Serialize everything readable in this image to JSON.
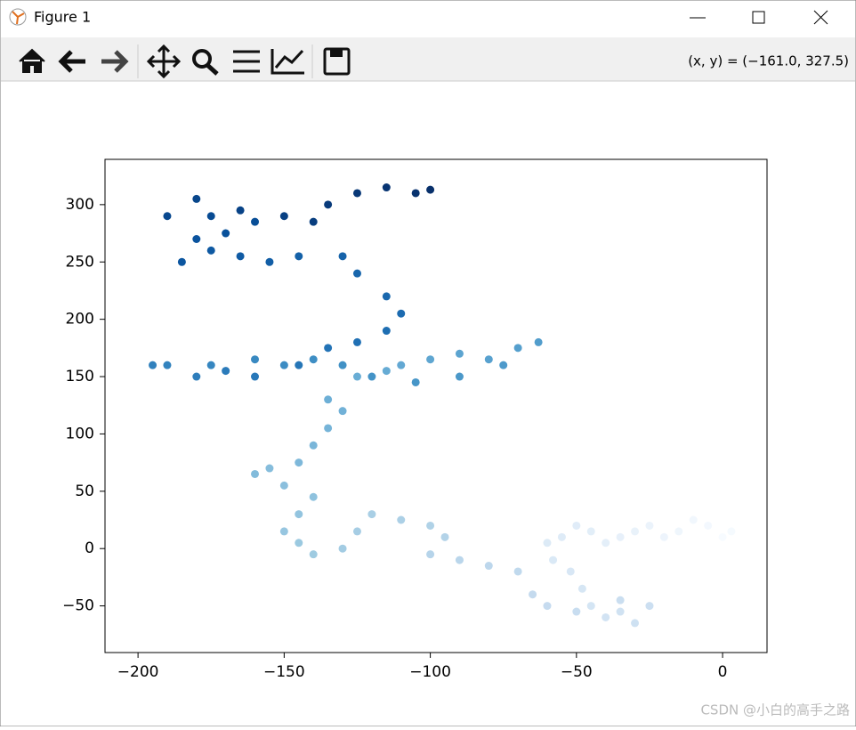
{
  "window": {
    "title": "Figure 1",
    "coordinates": "(x, y) = (−161.0, 327.5)"
  },
  "watermark": "CSDN @小白的高手之路",
  "chart_data": {
    "type": "scatter",
    "colormap": "Blues",
    "x": [
      0,
      3,
      -5,
      -10,
      -15,
      -20,
      -25,
      -30,
      -35,
      -40,
      -45,
      -50,
      -55,
      -60,
      -58,
      -52,
      -48,
      -45,
      -40,
      -35,
      -30,
      -25,
      -35,
      -50,
      -60,
      -65,
      -70,
      -80,
      -90,
      -100,
      -95,
      -100,
      -110,
      -120,
      -125,
      -130,
      -140,
      -145,
      -150,
      -145,
      -140,
      -150,
      -155,
      -160,
      -145,
      -140,
      -135,
      -130,
      -135,
      -125,
      -115,
      -110,
      -100,
      -90,
      -80,
      -70,
      -63,
      -75,
      -90,
      -105,
      -120,
      -130,
      -140,
      -150,
      -160,
      -175,
      -190,
      -195,
      -180,
      -170,
      -160,
      -145,
      -135,
      -125,
      -115,
      -110,
      -115,
      -125,
      -130,
      -145,
      -155,
      -165,
      -175,
      -185,
      -180,
      -170,
      -160,
      -175,
      -190,
      -180,
      -165,
      -150,
      -140,
      -135,
      -125,
      -115,
      -105,
      -100
    ],
    "values": [
      10,
      15,
      20,
      25,
      15,
      10,
      20,
      15,
      10,
      5,
      15,
      20,
      10,
      5,
      -10,
      -20,
      -35,
      -50,
      -60,
      -55,
      -65,
      -50,
      -45,
      -55,
      -50,
      -40,
      -20,
      -15,
      -10,
      -5,
      10,
      20,
      25,
      30,
      15,
      0,
      -5,
      5,
      15,
      30,
      45,
      55,
      70,
      65,
      75,
      90,
      105,
      120,
      130,
      150,
      155,
      160,
      165,
      170,
      165,
      175,
      180,
      160,
      150,
      145,
      150,
      160,
      165,
      160,
      165,
      160,
      160,
      160,
      150,
      155,
      150,
      160,
      175,
      180,
      190,
      205,
      220,
      240,
      255,
      255,
      250,
      255,
      260,
      250,
      270,
      275,
      285,
      290,
      290,
      305,
      295,
      290,
      285,
      300,
      310,
      315,
      310,
      313
    ],
    "xlim": [
      -211.3,
      15.2
    ],
    "ylim": [
      -90.7,
      339.5
    ],
    "xticks": [
      {
        "value": -200,
        "label": "−200"
      },
      {
        "value": -150,
        "label": "−150"
      },
      {
        "value": -100,
        "label": "−100"
      },
      {
        "value": -50,
        "label": "−50"
      },
      0
    ],
    "yticks": [
      {
        "value": -50,
        "label": "−50"
      },
      0,
      50,
      100,
      150,
      200,
      250,
      300
    ]
  }
}
